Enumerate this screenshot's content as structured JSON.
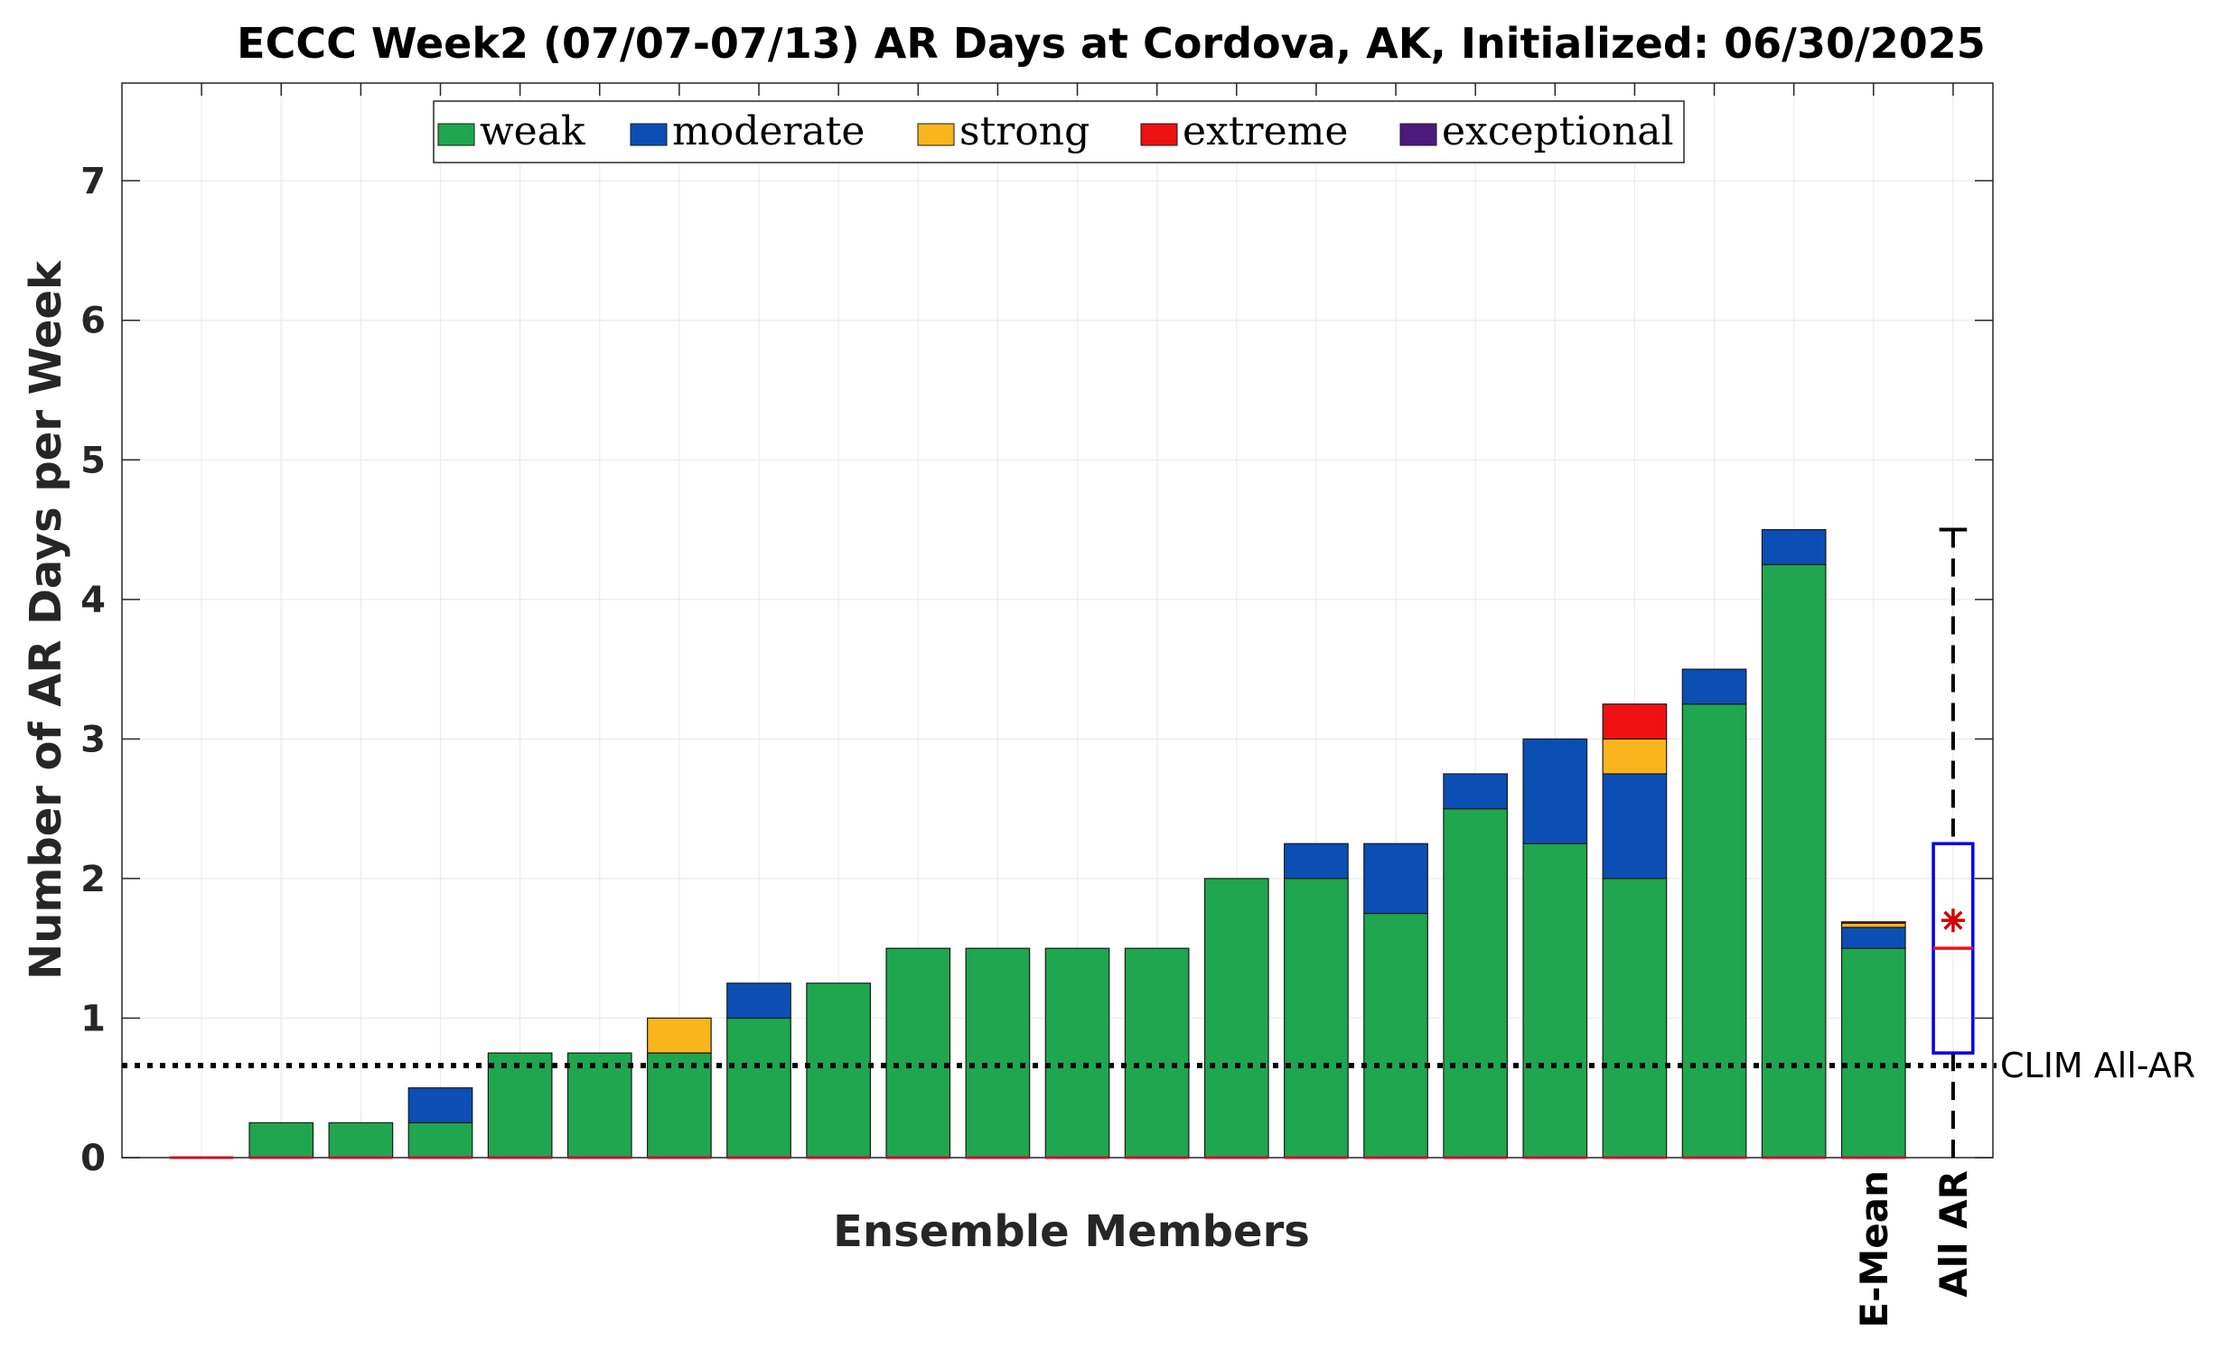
{
  "chart_data": {
    "type": "bar",
    "stacked": true,
    "title": "ECCC Week2 (07/07-07/13) AR Days at Cordova, AK, Initialized: 06/30/2025",
    "xlabel": "Ensemble Members",
    "ylabel": "Number of AR Days per Week",
    "ylim": [
      0,
      7.7
    ],
    "yticks": [
      0,
      1,
      2,
      3,
      4,
      5,
      6,
      7
    ],
    "grid": true,
    "legend_position": "top",
    "categories_labels": [
      "E-Mean",
      "All AR"
    ],
    "series": [
      {
        "name": "weak",
        "color": "#1fa64f",
        "values": [
          0,
          0.25,
          0.25,
          0.25,
          0.75,
          0.75,
          0.75,
          1.0,
          1.25,
          1.5,
          1.5,
          1.5,
          1.5,
          2.0,
          2.0,
          1.75,
          2.5,
          2.25,
          2.0,
          3.25,
          4.25,
          1.5
        ]
      },
      {
        "name": "moderate",
        "color": "#0b4fb5",
        "values": [
          0,
          0,
          0,
          0.25,
          0,
          0,
          0,
          0.25,
          0,
          0,
          0,
          0,
          0,
          0,
          0.25,
          0.5,
          0.25,
          0.75,
          0.75,
          0.25,
          0.25,
          0.15
        ]
      },
      {
        "name": "strong",
        "color": "#f9b51c",
        "values": [
          0,
          0,
          0,
          0,
          0,
          0,
          0.25,
          0,
          0,
          0,
          0,
          0,
          0,
          0,
          0,
          0,
          0,
          0,
          0.25,
          0,
          0,
          0.03
        ]
      },
      {
        "name": "extreme",
        "color": "#ee1212",
        "values": [
          0,
          0,
          0,
          0,
          0,
          0,
          0,
          0,
          0,
          0,
          0,
          0,
          0,
          0,
          0,
          0,
          0,
          0,
          0.25,
          0,
          0,
          0.01
        ]
      },
      {
        "name": "exceptional",
        "color": "#4b1a7a",
        "values": [
          0,
          0,
          0,
          0,
          0,
          0,
          0,
          0,
          0,
          0,
          0,
          0,
          0,
          0,
          0,
          0,
          0,
          0,
          0,
          0,
          0,
          0
        ]
      }
    ],
    "all_ar_box": {
      "whisker_low": 0,
      "q1": 0.75,
      "median": 1.5,
      "q3": 2.25,
      "whisker_high": 4.5,
      "mean": 1.7,
      "box_color": "#0000ee",
      "median_color": "#ee1212"
    },
    "clim_line": {
      "value": 0.66,
      "label": "CLIM All-AR"
    }
  }
}
